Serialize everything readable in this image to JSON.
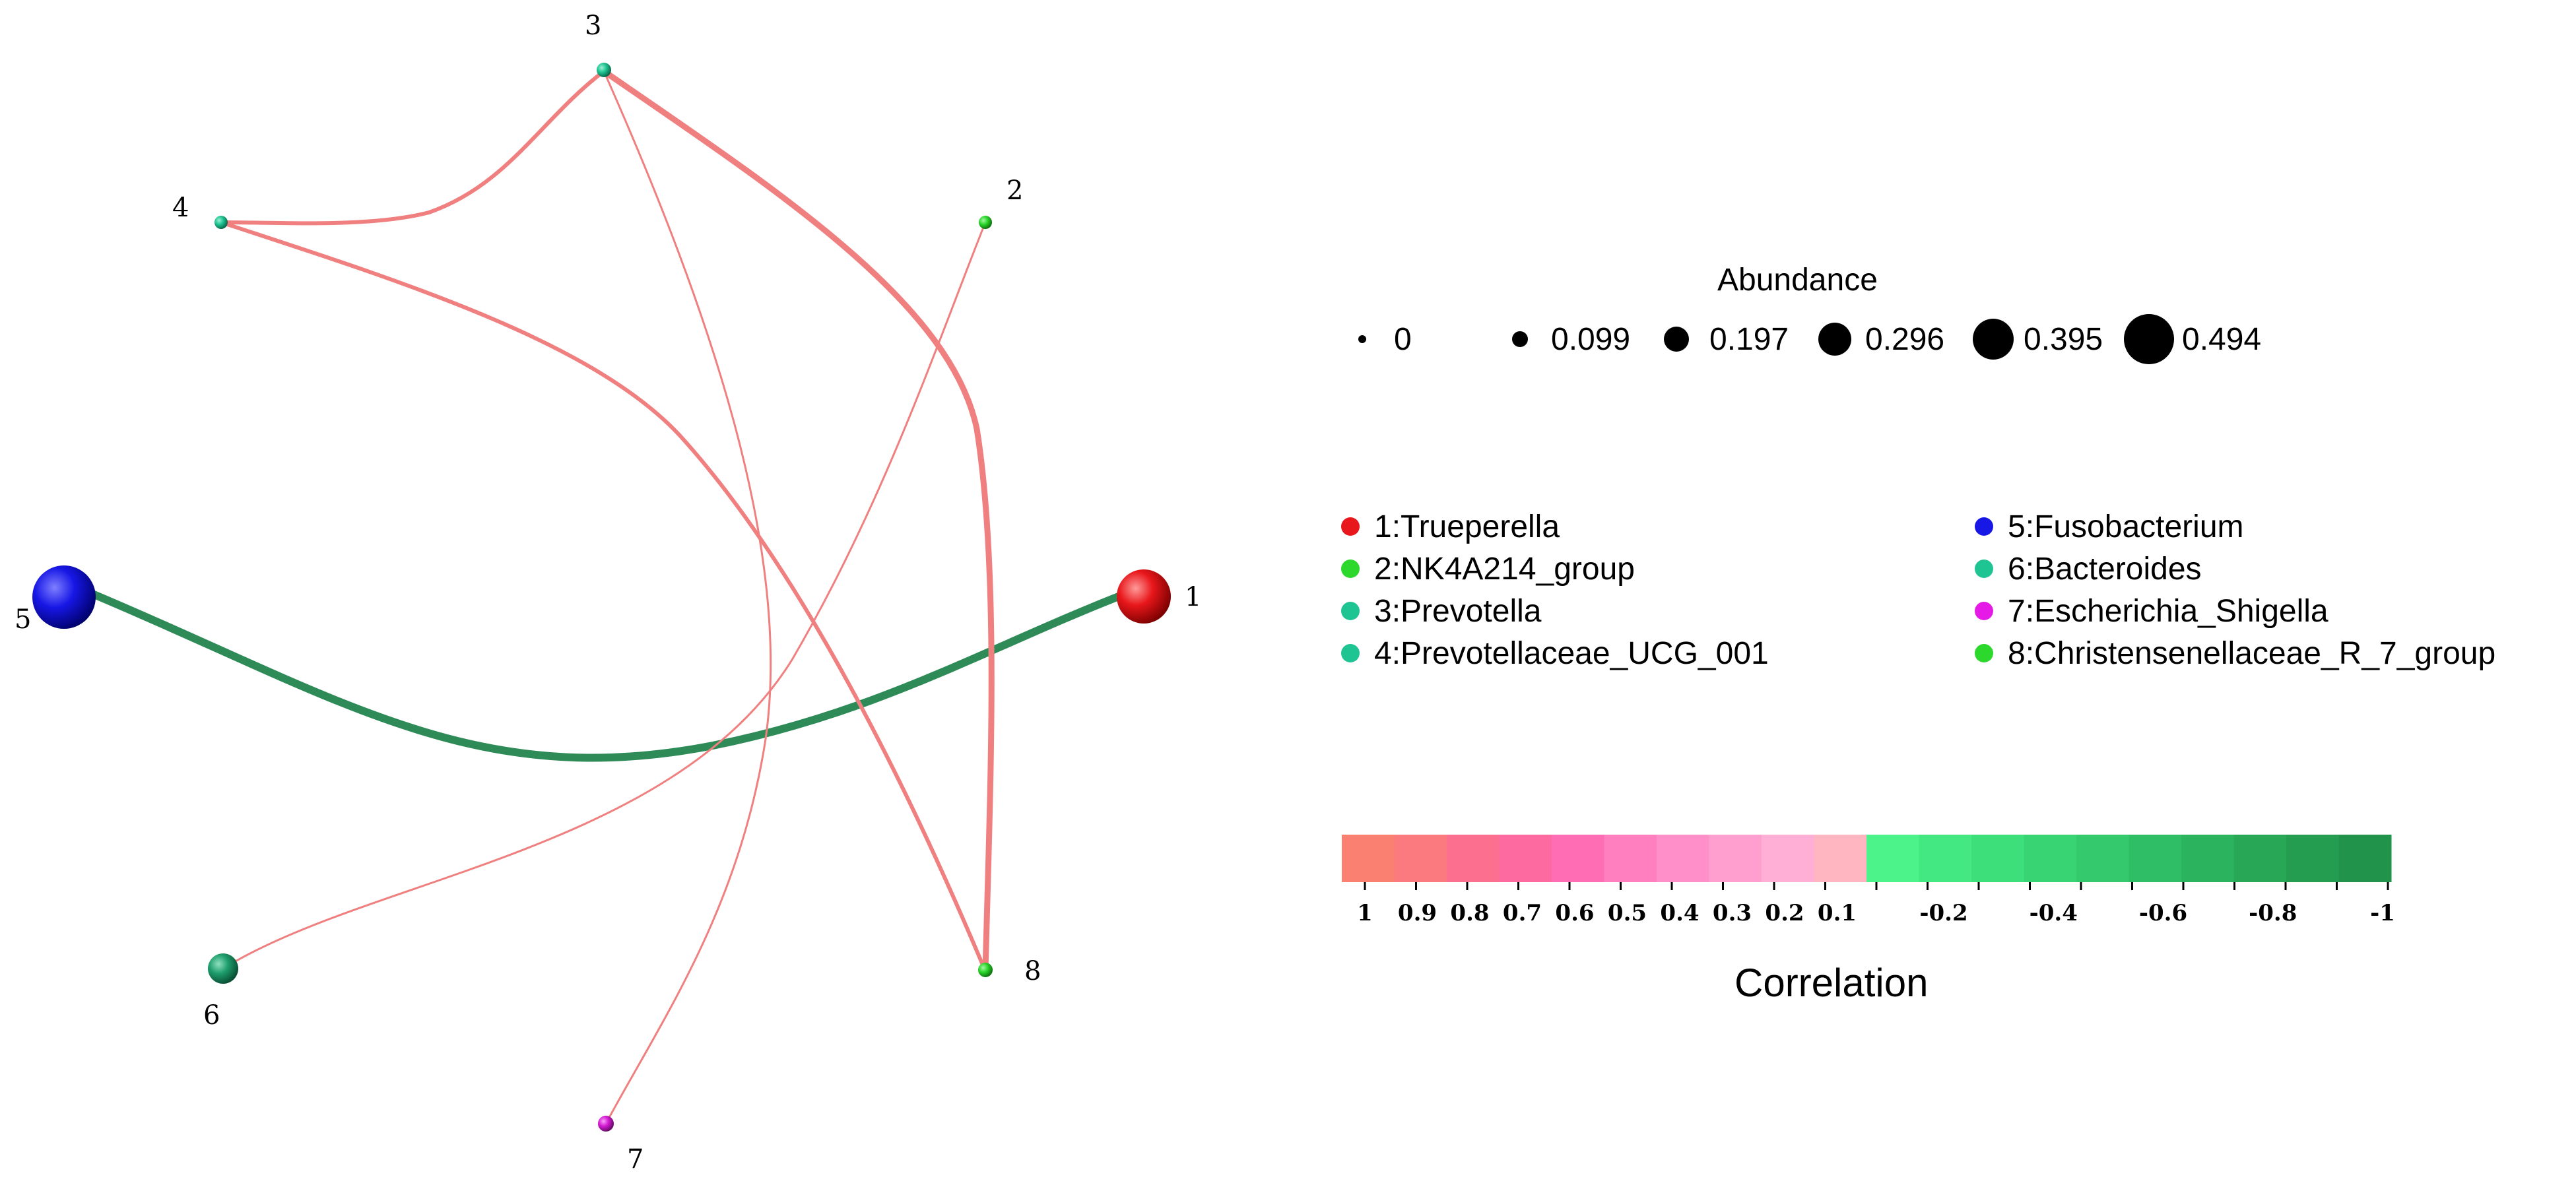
{
  "nodes": [
    {
      "id": "1",
      "label": "1",
      "name": "Trueperella",
      "color": "#e8171b",
      "abundance": 0.395
    },
    {
      "id": "2",
      "label": "2",
      "name": "NK4A214_group",
      "color": "#2bd82b",
      "abundance": 0.0
    },
    {
      "id": "3",
      "label": "3",
      "name": "Prevotella",
      "color": "#1ec592",
      "abundance": 0.0
    },
    {
      "id": "4",
      "label": "4",
      "name": "Prevotellaceae_UCG_001",
      "color": "#1ec592",
      "abundance": 0.0
    },
    {
      "id": "5",
      "label": "5",
      "name": "Fusobacterium",
      "color": "#1717e6",
      "abundance": 0.494
    },
    {
      "id": "6",
      "label": "6",
      "name": "Bacteroides",
      "color": "#1e9e6c",
      "abundance": 0.099
    },
    {
      "id": "7",
      "label": "7",
      "name": "Escherichia_Shigella",
      "color": "#d41ad4",
      "abundance": 0.0
    },
    {
      "id": "8",
      "label": "8",
      "name": "Christensenellaceae_R_7_group",
      "color": "#2bd82b",
      "abundance": 0.0
    }
  ],
  "edges": [
    {
      "source": "5",
      "target": "1",
      "correlation": -1.0,
      "color": "#2e8b57"
    },
    {
      "source": "3",
      "target": "8",
      "correlation": 0.8,
      "color": "#f08080"
    },
    {
      "source": "3",
      "target": "4",
      "correlation": 0.6,
      "color": "#f08080"
    },
    {
      "source": "4",
      "target": "8",
      "correlation": 0.6,
      "color": "#f08080"
    },
    {
      "source": "3",
      "target": "7",
      "correlation": 0.3,
      "color": "#f08080"
    },
    {
      "source": "2",
      "target": "6",
      "correlation": 0.3,
      "color": "#f08080"
    }
  ],
  "abundance_legend": {
    "title": "Abundance",
    "items": [
      "0",
      "0.099",
      "0.197",
      "0.296",
      "0.395",
      "0.494"
    ]
  },
  "taxa_legend": [
    {
      "text": "1:Trueperella",
      "color": "#e8171b"
    },
    {
      "text": "2:NK4A214_group",
      "color": "#2bd82b"
    },
    {
      "text": "3:Prevotella",
      "color": "#1ec592"
    },
    {
      "text": "4:Prevotellaceae_UCG_001",
      "color": "#1ec592"
    },
    {
      "text": "5:Fusobacterium",
      "color": "#1717e6"
    },
    {
      "text": "6:Bacteroides",
      "color": "#1ec592"
    },
    {
      "text": "7:Escherichia_Shigella",
      "color": "#e61ae6"
    },
    {
      "text": "8:Christensenellaceae_R_7_group",
      "color": "#2bd82b"
    }
  ],
  "correlation_legend": {
    "title": "Correlation",
    "positive_colors": [
      "#fa8072",
      "#fb7a7f",
      "#fc6f8e",
      "#fd6aa0",
      "#ff6eb4",
      "#ff7fbf",
      "#ff8fc8",
      "#ff9fcf",
      "#ffafd6",
      "#ffb6c1"
    ],
    "negative_colors": [
      "#4cf28a",
      "#44e882",
      "#3ddf7b",
      "#38d474",
      "#33c96c",
      "#2fbe65",
      "#2bb35e",
      "#28a857",
      "#259d51",
      "#22934b"
    ],
    "ticks": [
      "1",
      "0.9",
      "0.8",
      "0.7",
      "0.6",
      "0.5",
      "0.4",
      "0.3",
      "0.2",
      "0.1",
      "-0.2",
      "-0.4",
      "-0.6",
      "-0.8",
      "-1"
    ]
  }
}
